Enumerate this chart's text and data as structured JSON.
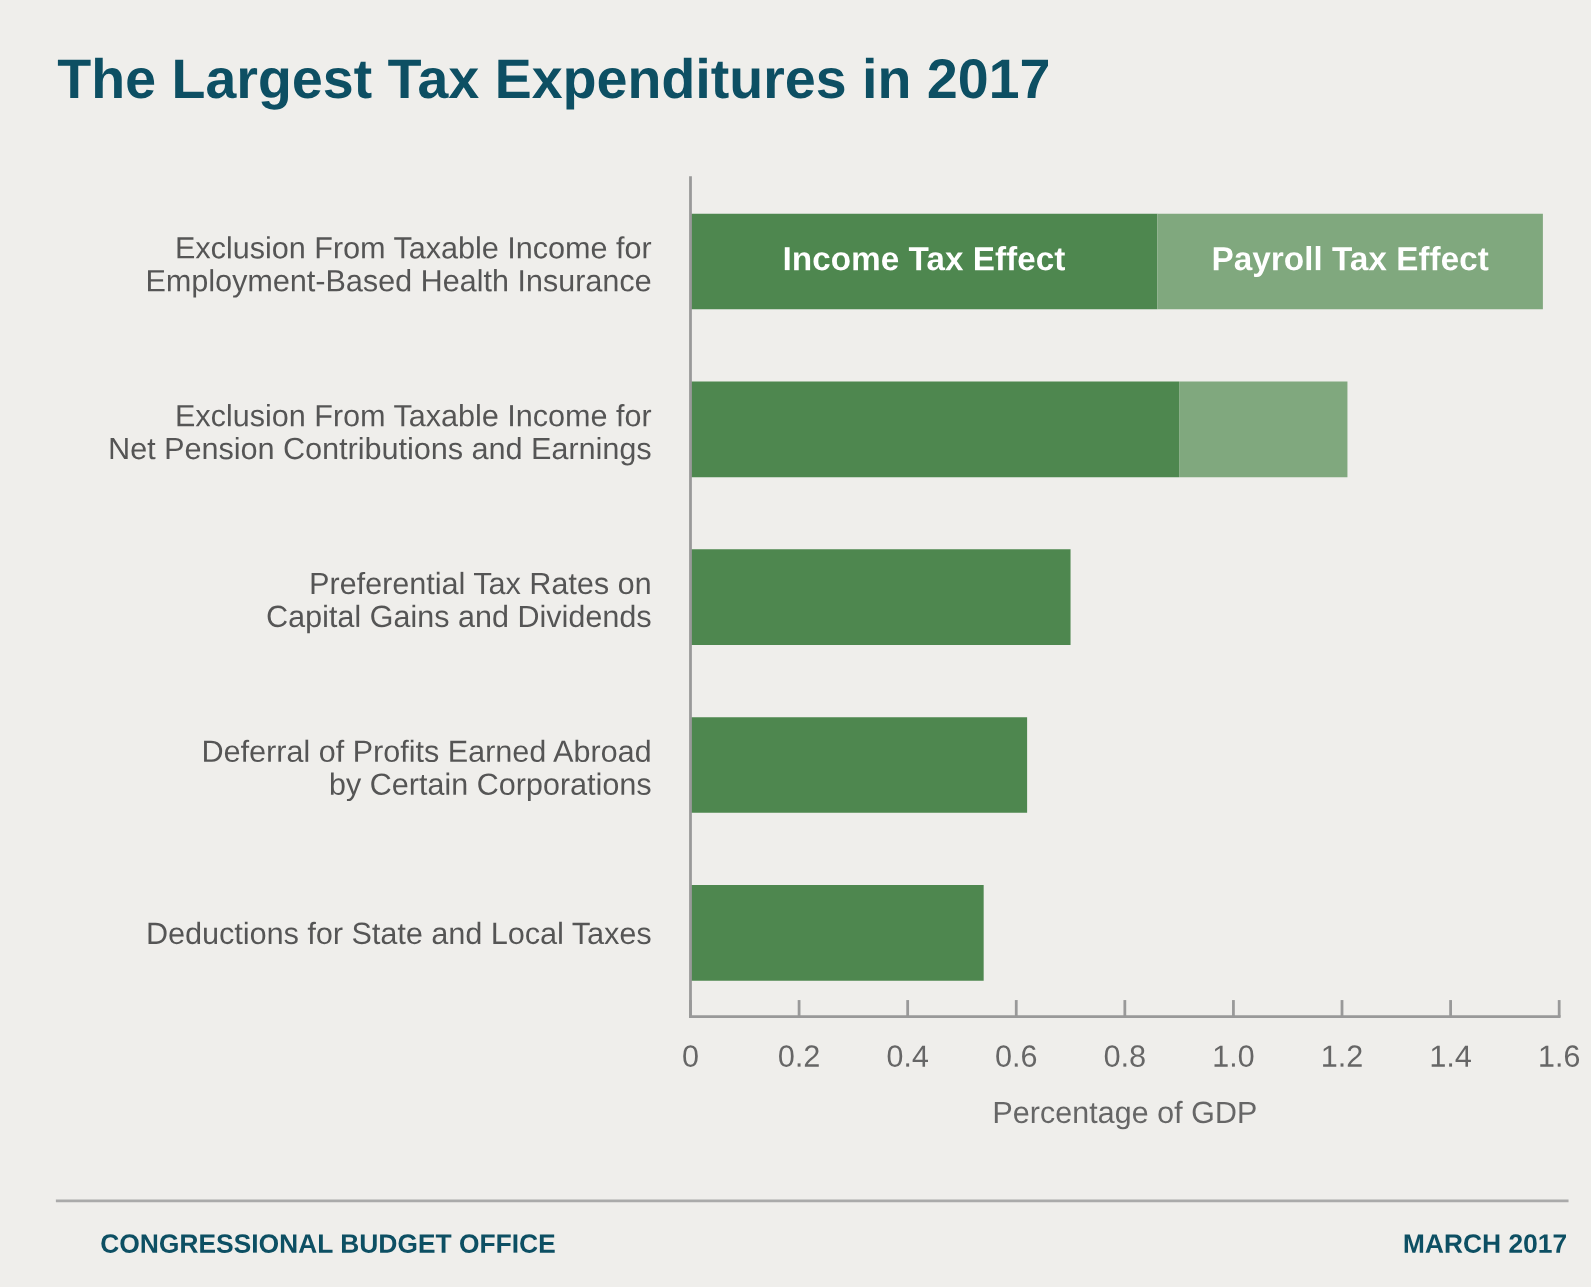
{
  "chart_data": {
    "type": "bar",
    "orientation": "horizontal",
    "stacked": true,
    "title": "The Largest Tax Expenditures in 2017",
    "xlabel": "Percentage of GDP",
    "categories": [
      "Exclusion From Taxable Income for\nEmployment-Based Health Insurance",
      "Exclusion From Taxable Income for\nNet Pension Contributions and Earnings",
      "Preferential Tax Rates on\nCapital Gains and Dividends",
      "Deferral of Profits Earned Abroad\nby Certain Corporations",
      "Deductions for State and Local Taxes"
    ],
    "series": [
      {
        "name": "Income Tax Effect",
        "color": "#4e874f",
        "values": [
          0.86,
          0.9,
          0.7,
          0.62,
          0.54
        ]
      },
      {
        "name": "Payroll Tax Effect",
        "color": "#80a87e",
        "values": [
          0.71,
          0.31,
          null,
          null,
          null
        ]
      }
    ],
    "xlim": [
      0,
      1.6
    ],
    "xticks": [
      0,
      0.2,
      0.4,
      0.6,
      0.8,
      {
        "value": 1.0,
        "label": "1.0"
      },
      1.2,
      1.4,
      1.6
    ],
    "grid": false,
    "legend": false,
    "annotations": [
      "CONGRESSIONAL BUDGET OFFICE",
      "MARCH 2017"
    ]
  }
}
